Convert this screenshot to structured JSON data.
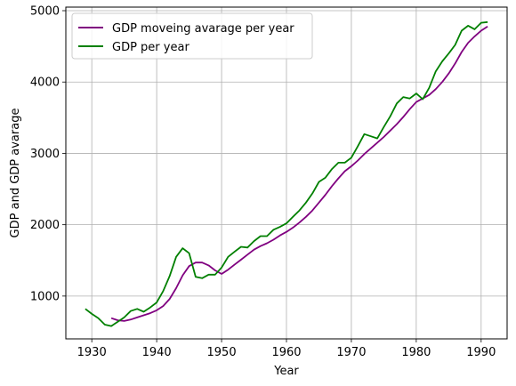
{
  "chart_data": {
    "type": "line",
    "title": "",
    "xlabel": "Year",
    "ylabel": "GDP and GDP avarage",
    "xlim": [
      1926,
      1994
    ],
    "ylim": [
      400,
      5050
    ],
    "x_ticks": [
      1930,
      1940,
      1950,
      1960,
      1970,
      1980,
      1990
    ],
    "y_ticks": [
      1000,
      2000,
      3000,
      4000,
      5000
    ],
    "grid": true,
    "legend_position": "top-left",
    "series": [
      {
        "name": "GDP moveing avarage per year",
        "color": "#800080",
        "x": [
          1933,
          1934,
          1935,
          1936,
          1937,
          1938,
          1939,
          1940,
          1941,
          1942,
          1943,
          1944,
          1945,
          1946,
          1947,
          1948,
          1949,
          1950,
          1951,
          1952,
          1953,
          1954,
          1955,
          1956,
          1957,
          1958,
          1959,
          1960,
          1961,
          1962,
          1963,
          1964,
          1965,
          1966,
          1967,
          1968,
          1969,
          1970,
          1971,
          1972,
          1973,
          1974,
          1975,
          1976,
          1977,
          1978,
          1979,
          1980,
          1981,
          1982,
          1983,
          1984,
          1985,
          1986,
          1987,
          1988,
          1989,
          1990,
          1991
        ],
        "y": [
          690,
          660,
          650,
          670,
          700,
          730,
          760,
          800,
          860,
          960,
          1110,
          1290,
          1420,
          1470,
          1470,
          1430,
          1360,
          1310,
          1370,
          1440,
          1510,
          1580,
          1650,
          1700,
          1740,
          1790,
          1850,
          1900,
          1960,
          2030,
          2110,
          2200,
          2310,
          2420,
          2540,
          2650,
          2750,
          2820,
          2900,
          2990,
          3070,
          3150,
          3230,
          3320,
          3410,
          3510,
          3620,
          3720,
          3770,
          3820,
          3900,
          4000,
          4120,
          4260,
          4420,
          4550,
          4640,
          4720,
          4780
        ]
      },
      {
        "name": "GDP per year",
        "color": "#008000",
        "x": [
          1929,
          1930,
          1931,
          1932,
          1933,
          1934,
          1935,
          1936,
          1937,
          1938,
          1939,
          1940,
          1941,
          1942,
          1943,
          1944,
          1945,
          1946,
          1947,
          1948,
          1949,
          1950,
          1951,
          1952,
          1953,
          1954,
          1955,
          1956,
          1957,
          1958,
          1959,
          1960,
          1961,
          1962,
          1963,
          1964,
          1965,
          1966,
          1967,
          1968,
          1969,
          1970,
          1971,
          1972,
          1973,
          1974,
          1975,
          1976,
          1977,
          1978,
          1979,
          1980,
          1981,
          1982,
          1983,
          1984,
          1985,
          1986,
          1987,
          1988,
          1989,
          1990,
          1991
        ],
        "y": [
          820,
          750,
          690,
          600,
          580,
          640,
          700,
          790,
          820,
          780,
          840,
          910,
          1070,
          1280,
          1550,
          1670,
          1600,
          1270,
          1250,
          1300,
          1300,
          1400,
          1550,
          1620,
          1690,
          1680,
          1770,
          1840,
          1840,
          1930,
          1970,
          2020,
          2110,
          2200,
          2310,
          2440,
          2600,
          2660,
          2780,
          2870,
          2870,
          2940,
          3100,
          3270,
          3240,
          3210,
          3370,
          3520,
          3700,
          3790,
          3770,
          3840,
          3760,
          3920,
          4150,
          4290,
          4400,
          4520,
          4720,
          4790,
          4740,
          4830,
          4840
        ]
      }
    ]
  }
}
